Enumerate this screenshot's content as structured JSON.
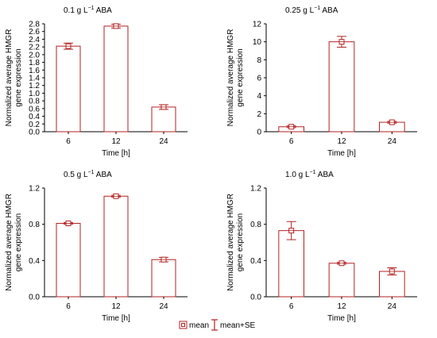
{
  "colors": {
    "bar": "#b22222",
    "axis": "#000000",
    "background": "#ffffff"
  },
  "legend": {
    "mean_label": "mean",
    "se_label": "mean+SE",
    "position": "bottom-center"
  },
  "chart_data": [
    {
      "type": "bar",
      "title": "0.1 g L-1 ABA",
      "title_main": "0.1 g L",
      "title_sup": "−1",
      "title_tail": " ABA",
      "xlabel": "Time [h]",
      "ylabel": [
        "Normalized average HMGR",
        "gene expression"
      ],
      "categories": [
        "6",
        "12",
        "24"
      ],
      "values": [
        2.22,
        2.74,
        0.64
      ],
      "se": [
        0.08,
        0.05,
        0.06
      ],
      "ylim": [
        0,
        2.8
      ],
      "yticks": [
        "0.0",
        "0.2",
        "0.4",
        "0.6",
        "0.8",
        "1.0",
        "1.2",
        "1.4",
        "1.6",
        "1.8",
        "2.0",
        "2.2",
        "2.4",
        "2.6",
        "2.8"
      ],
      "grid": false
    },
    {
      "type": "bar",
      "title": "0.25 g L-1 ABA",
      "title_main": "0.25 g L",
      "title_sup": "−1",
      "title_tail": " ABA",
      "xlabel": "Time [h]",
      "ylabel": [
        "Normalized average HMGR",
        "gene expression"
      ],
      "categories": [
        "6",
        "12",
        "24"
      ],
      "values": [
        0.55,
        10.0,
        1.05
      ],
      "se": [
        0.1,
        0.6,
        0.1
      ],
      "ylim": [
        0,
        12
      ],
      "yticks": [
        "0",
        "2",
        "4",
        "6",
        "8",
        "10",
        "12"
      ],
      "grid": false
    },
    {
      "type": "bar",
      "title": "0.5 g L-1 ABA",
      "title_main": "0.5 g L",
      "title_sup": "−1",
      "title_tail": " ABA",
      "xlabel": "Time [h]",
      "ylabel": [
        "Normalized average HMGR",
        "gene expression"
      ],
      "categories": [
        "6",
        "12",
        "24"
      ],
      "values": [
        0.81,
        1.11,
        0.41
      ],
      "se": [
        0.01,
        0.01,
        0.025
      ],
      "ylim": [
        0,
        1.2
      ],
      "yticks": [
        "0.0",
        "0.4",
        "0.8",
        "1.2"
      ],
      "grid": false
    },
    {
      "type": "bar",
      "title": "1.0 g L-1 ABA",
      "title_main": "1.0 g L",
      "title_sup": "−1",
      "title_tail": " ABA",
      "xlabel": "Time [h]",
      "ylabel": [
        "Normalized average HMGR",
        "gene expression"
      ],
      "categories": [
        "6",
        "12",
        "24"
      ],
      "values": [
        0.73,
        0.37,
        0.28
      ],
      "se": [
        0.1,
        0.01,
        0.04
      ],
      "ylim": [
        0,
        1.2
      ],
      "yticks": [
        "0.0",
        "0.4",
        "0.8",
        "1.2"
      ],
      "grid": false
    }
  ]
}
